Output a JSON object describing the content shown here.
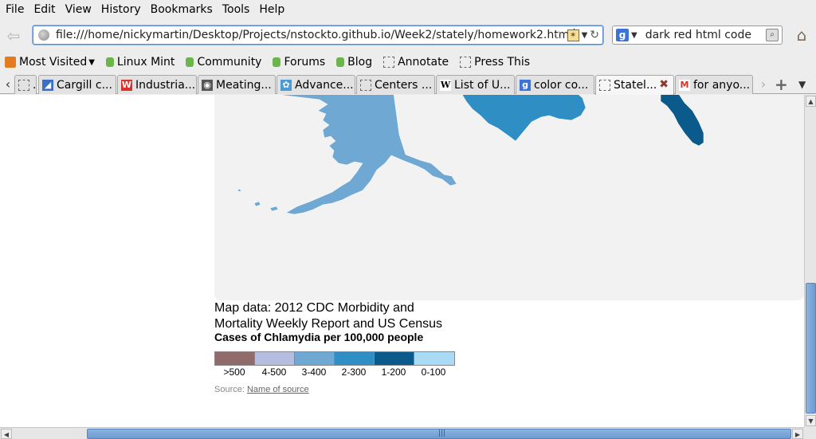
{
  "menu": {
    "items": [
      "File",
      "Edit",
      "View",
      "History",
      "Bookmarks",
      "Tools",
      "Help"
    ]
  },
  "navbar": {
    "url": "file:///home/nickymartin/Desktop/Projects/nstockto.github.io/Week2/stately/homework2.html",
    "search_value": "dark red html code",
    "search_engine_glyph": "g"
  },
  "bookmarks": {
    "items": [
      {
        "label": "Most Visited",
        "icon": "rss-icon",
        "dropdown": true
      },
      {
        "label": "Linux Mint",
        "icon": "mint-icon"
      },
      {
        "label": "Community",
        "icon": "mint-icon"
      },
      {
        "label": "Forums",
        "icon": "mint-icon"
      },
      {
        "label": "Blog",
        "icon": "mint-icon"
      },
      {
        "label": "Annotate",
        "icon": "page-icon"
      },
      {
        "label": "Press This",
        "icon": "page-icon"
      }
    ]
  },
  "tabs": {
    "items": [
      {
        "label": "...",
        "icon": "page-icon",
        "icon_color": "#e2e2e2",
        "icon_glyph": ""
      },
      {
        "label": "Cargill c...",
        "icon": "cargill-icon",
        "icon_color": "#3a6fc4",
        "icon_glyph": "◢"
      },
      {
        "label": "Industria...",
        "icon": "industria-icon",
        "icon_color": "#d9322c",
        "icon_glyph": "W"
      },
      {
        "label": "Meating...",
        "icon": "meating-icon",
        "icon_color": "#555555",
        "icon_glyph": "◉"
      },
      {
        "label": "Advance...",
        "icon": "advance-icon",
        "icon_color": "#4a9bd6",
        "icon_glyph": "✿"
      },
      {
        "label": "Centers ...",
        "icon": "page-icon",
        "icon_color": "#e2e2e2",
        "icon_glyph": ""
      },
      {
        "label": "List of U...",
        "icon": "wikipedia-icon",
        "icon_color": "#ffffff",
        "icon_glyph": "W"
      },
      {
        "label": "color co...",
        "icon": "google-icon",
        "icon_color": "#3b73d9",
        "icon_glyph": "g"
      },
      {
        "label": "Statel...",
        "icon": "page-icon",
        "icon_color": "#f6f6f6",
        "icon_glyph": "",
        "active": true
      },
      {
        "label": "for anyo...",
        "icon": "gmail-icon",
        "icon_color": "#ffffff",
        "icon_glyph": "M"
      }
    ]
  },
  "map": {
    "caption": "Map data: 2012 CDC Morbidity and Mortality Weekly Report and US Census",
    "legend_title": "Cases of Chlamydia per 100,000 people",
    "legend": [
      {
        "label": ">500",
        "color": "#8f6b6b"
      },
      {
        "label": "4-500",
        "color": "#b5bedf"
      },
      {
        "label": "3-400",
        "color": "#6fa8d3"
      },
      {
        "label": "2-300",
        "color": "#2f8fc4"
      },
      {
        "label": "1-200",
        "color": "#0b5a8c"
      },
      {
        "label": "0-100",
        "color": "#a9daf6"
      }
    ],
    "source_prefix": "Source:",
    "source_link": "Name of source",
    "colors": {
      "alaska": "#6fa8d3",
      "texas": "#2f8fc4",
      "florida": "#0b5a8c",
      "background": "#f2f2f2"
    }
  }
}
